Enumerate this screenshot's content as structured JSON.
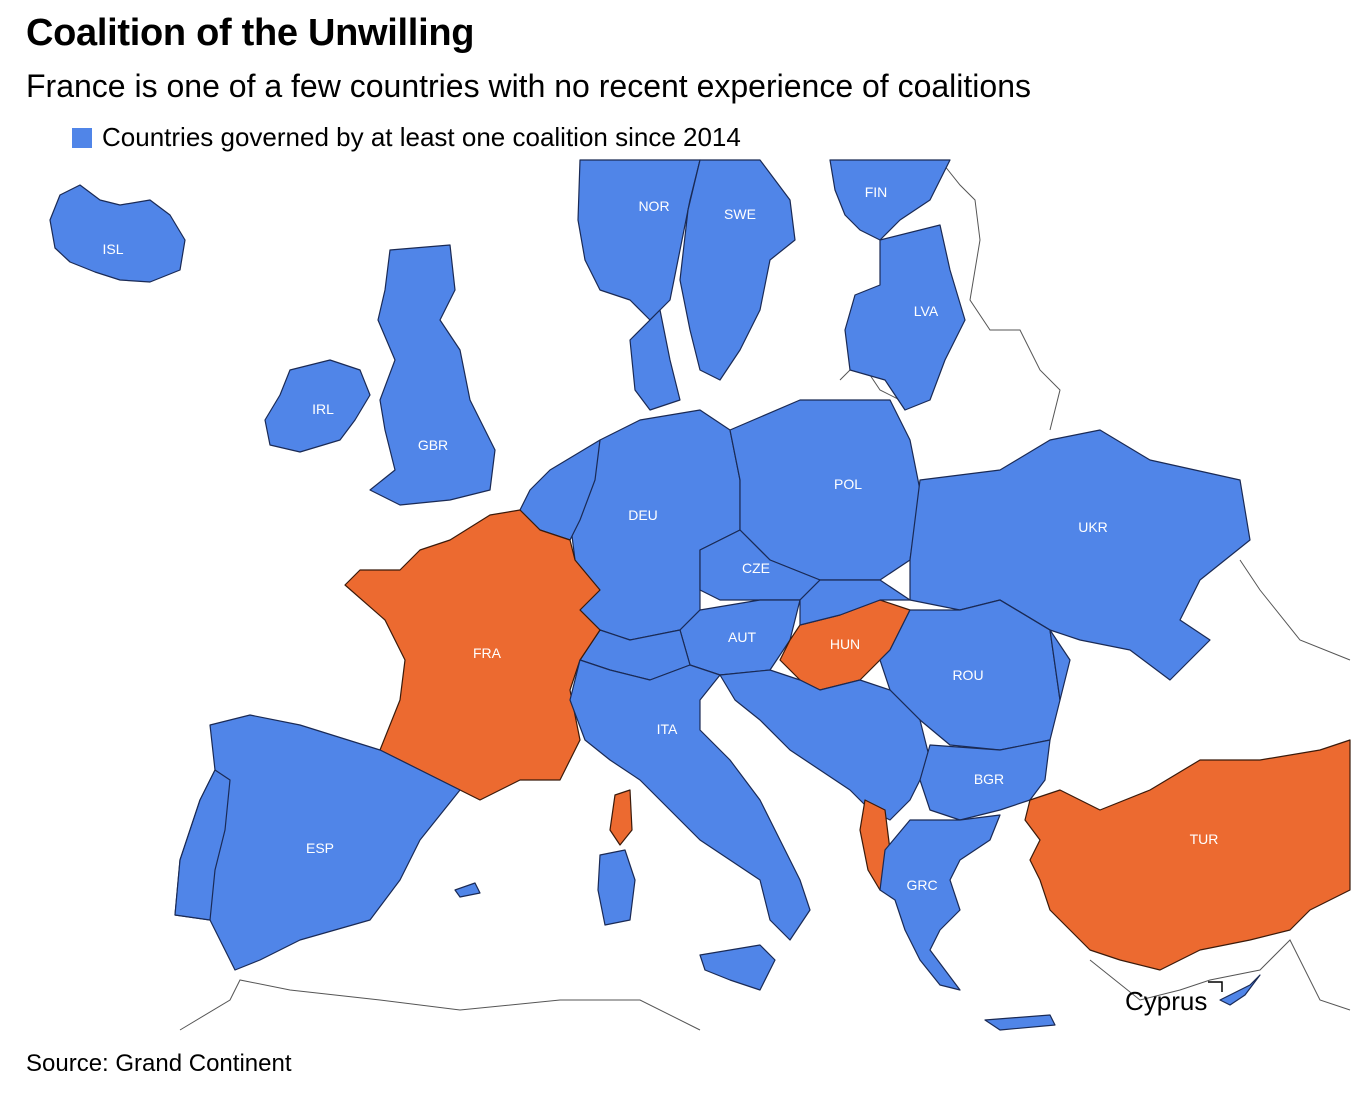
{
  "title": "Coalition of the Unwilling",
  "subtitle": "France is one of a few countries with no recent experience of coalitions",
  "legend": {
    "label": "Countries governed by at least one coalition since 2014",
    "color": "#5085e8"
  },
  "colors": {
    "coalition": "#5085e8",
    "no_coalition": "#ec6a30"
  },
  "countries": [
    {
      "code": "ISL",
      "coalition": true
    },
    {
      "code": "NOR",
      "coalition": true
    },
    {
      "code": "SWE",
      "coalition": true
    },
    {
      "code": "FIN",
      "coalition": true
    },
    {
      "code": "LVA",
      "coalition": true
    },
    {
      "code": "IRL",
      "coalition": true
    },
    {
      "code": "GBR",
      "coalition": true
    },
    {
      "code": "DEU",
      "coalition": true
    },
    {
      "code": "POL",
      "coalition": true
    },
    {
      "code": "UKR",
      "coalition": true
    },
    {
      "code": "CZE",
      "coalition": true
    },
    {
      "code": "FRA",
      "coalition": false
    },
    {
      "code": "AUT",
      "coalition": true
    },
    {
      "code": "HUN",
      "coalition": false
    },
    {
      "code": "ROU",
      "coalition": true
    },
    {
      "code": "ITA",
      "coalition": true
    },
    {
      "code": "BGR",
      "coalition": true
    },
    {
      "code": "ESP",
      "coalition": true
    },
    {
      "code": "TUR",
      "coalition": false
    },
    {
      "code": "GRC",
      "coalition": true
    }
  ],
  "annotation": "Cyprus",
  "source": "Source: Grand Continent"
}
